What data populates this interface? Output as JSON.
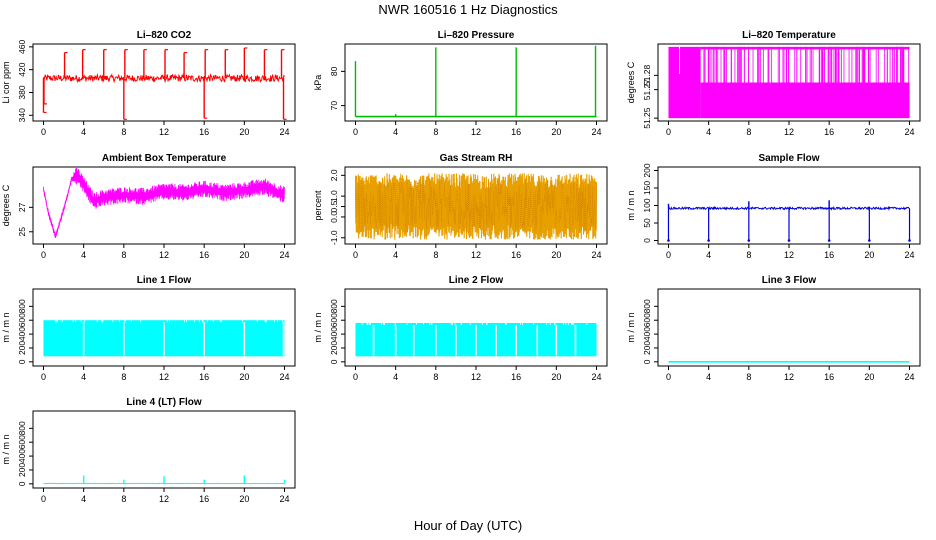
{
  "figure": {
    "title": "NWR  160516  1 Hz Diagnostics",
    "xlabel": "Hour of Day (UTC)"
  },
  "chart_data": [
    {
      "id": "co2",
      "type": "line",
      "title": "Li–820 CO2",
      "ylabel": "Li cor ppm",
      "color": "#ff0000",
      "xlim": [
        0,
        24
      ],
      "ylim": [
        330,
        465
      ],
      "xticks": [
        0,
        4,
        8,
        12,
        16,
        20,
        24
      ],
      "yticks": [
        340,
        380,
        420,
        460
      ],
      "ytick_labels": [
        "340",
        "380",
        "420",
        "460"
      ],
      "baseline": 405,
      "noise": 6,
      "spikes": [
        {
          "x": 0.0,
          "y": 345
        },
        {
          "x": 0.05,
          "y": 360
        },
        {
          "x": 2.1,
          "y": 450
        },
        {
          "x": 3.9,
          "y": 455
        },
        {
          "x": 6.0,
          "y": 455
        },
        {
          "x": 8.0,
          "y": 333
        },
        {
          "x": 8.1,
          "y": 455
        },
        {
          "x": 10.0,
          "y": 455
        },
        {
          "x": 12.1,
          "y": 455
        },
        {
          "x": 14.0,
          "y": 450
        },
        {
          "x": 16.0,
          "y": 335
        },
        {
          "x": 16.1,
          "y": 455
        },
        {
          "x": 18.1,
          "y": 455
        },
        {
          "x": 20.0,
          "y": 458
        },
        {
          "x": 22.0,
          "y": 455
        },
        {
          "x": 23.7,
          "y": 455
        },
        {
          "x": 23.9,
          "y": 333
        }
      ]
    },
    {
      "id": "pressure",
      "type": "line",
      "title": "Li–820 Pressure",
      "ylabel": "kPa",
      "color": "#00bb00",
      "xlim": [
        0,
        24
      ],
      "ylim": [
        65.5,
        88
      ],
      "xticks": [
        0,
        4,
        8,
        12,
        16,
        20,
        24
      ],
      "yticks": [
        70,
        80
      ],
      "ytick_labels": [
        "70",
        "80"
      ],
      "baseline": 66.8,
      "spikes": [
        {
          "x": 0.0,
          "y": 83
        },
        {
          "x": 4.0,
          "y": 67.5
        },
        {
          "x": 8.0,
          "y": 87
        },
        {
          "x": 16.0,
          "y": 87
        },
        {
          "x": 23.9,
          "y": 87.5
        }
      ]
    },
    {
      "id": "li_temp",
      "type": "band",
      "title": "Li–820 Temperature",
      "ylabel": "degrees C",
      "color": "#ff00ff",
      "xlim": [
        0,
        24
      ],
      "ylim": [
        51.248,
        51.302
      ],
      "xticks": [
        0,
        4,
        8,
        12,
        16,
        20,
        24
      ],
      "yticks": [
        51.25,
        51.27,
        51.28
      ],
      "ytick_labels": [
        "51.25",
        "51.27",
        "51.28"
      ],
      "upper": 51.3,
      "lower": 51.25,
      "mid": 51.275,
      "gap_start": 3.2
    },
    {
      "id": "box_temp",
      "type": "line",
      "title": "Ambient Box Temperature",
      "ylabel": "degrees C",
      "color": "#ff00ff",
      "xlim": [
        0,
        24
      ],
      "ylim": [
        24.0,
        30.3
      ],
      "xticks": [
        0,
        4,
        8,
        12,
        16,
        20,
        24
      ],
      "yticks": [
        25,
        27
      ],
      "ytick_labels": [
        "25",
        "27"
      ],
      "trend": [
        {
          "x": 0.0,
          "y": 28.5
        },
        {
          "x": 0.5,
          "y": 26.5
        },
        {
          "x": 1.2,
          "y": 24.6
        },
        {
          "x": 2.0,
          "y": 26.8
        },
        {
          "x": 2.8,
          "y": 29.3
        },
        {
          "x": 3.4,
          "y": 29.6
        },
        {
          "x": 4.2,
          "y": 28.6
        },
        {
          "x": 5.0,
          "y": 27.5
        },
        {
          "x": 6.0,
          "y": 27.8
        },
        {
          "x": 8.0,
          "y": 28.0
        },
        {
          "x": 10.0,
          "y": 27.9
        },
        {
          "x": 12.0,
          "y": 28.3
        },
        {
          "x": 14.0,
          "y": 28.2
        },
        {
          "x": 16.0,
          "y": 28.5
        },
        {
          "x": 18.0,
          "y": 28.2
        },
        {
          "x": 20.0,
          "y": 28.4
        },
        {
          "x": 22.0,
          "y": 28.7
        },
        {
          "x": 24.0,
          "y": 28.0
        }
      ],
      "noise": 0.7
    },
    {
      "id": "rh",
      "type": "noise",
      "title": "Gas Stream RH",
      "ylabel": "percent",
      "color": "#e8a000",
      "color2": "#d08000",
      "xlim": [
        0,
        24
      ],
      "ylim": [
        -1.3,
        2.4
      ],
      "xticks": [
        0,
        4,
        8,
        12,
        16,
        20,
        24
      ],
      "yticks": [
        -1.0,
        0.0,
        0.5,
        1.0,
        2.0
      ],
      "ytick_labels": [
        "-1.0",
        "0.0",
        "0.5",
        "1.0",
        "2.0"
      ],
      "center": 0.5,
      "amp": 1.6
    },
    {
      "id": "sample_flow",
      "type": "line",
      "title": "Sample Flow",
      "ylabel": "m / m n",
      "color": "#0000dd",
      "xlim": [
        0,
        24
      ],
      "ylim": [
        -10,
        210
      ],
      "xticks": [
        0,
        4,
        8,
        12,
        16,
        20,
        24
      ],
      "yticks": [
        0,
        50,
        100,
        150,
        200
      ],
      "ytick_labels": [
        "0",
        "50",
        "100",
        "150",
        "200"
      ],
      "baseline": 92,
      "noise": 3,
      "dips": [
        0.0,
        4.0,
        8.0,
        12.0,
        16.0,
        20.0,
        24.0
      ],
      "spikes": [
        {
          "x": 0.0,
          "y": 105
        },
        {
          "x": 8.0,
          "y": 112
        },
        {
          "x": 16.0,
          "y": 115
        }
      ]
    },
    {
      "id": "line1",
      "type": "block",
      "title": "Line 1 Flow",
      "ylabel": "m / m n",
      "color": "#00ffff",
      "xlim": [
        0,
        24
      ],
      "ylim": [
        -60,
        1050
      ],
      "xticks": [
        0,
        4,
        8,
        12,
        16,
        20,
        24
      ],
      "yticks": [
        0,
        200,
        400,
        600,
        800
      ],
      "ytick_labels": [
        "0",
        "200",
        "400",
        "600",
        "800"
      ],
      "top": 600,
      "bottom": 80,
      "gaps": [
        4.0,
        8.0,
        12.0,
        16.0,
        20.0,
        23.9
      ]
    },
    {
      "id": "line2",
      "type": "block",
      "title": "Line 2 Flow",
      "ylabel": "m / m n",
      "color": "#00ffff",
      "xlim": [
        0,
        24
      ],
      "ylim": [
        -60,
        1050
      ],
      "xticks": [
        0,
        4,
        8,
        12,
        16,
        20,
        24
      ],
      "yticks": [
        0,
        200,
        400,
        600,
        800
      ],
      "ytick_labels": [
        "0",
        "200",
        "400",
        "600",
        "800"
      ],
      "top": 560,
      "bottom": 80,
      "gaps": [
        1.8,
        4.0,
        5.8,
        8.0,
        10.0,
        12.0,
        14.0,
        16.0,
        18.1,
        20.0,
        21.9
      ]
    },
    {
      "id": "line3",
      "type": "line",
      "title": "Line 3 Flow",
      "ylabel": "m / m n",
      "color": "#00ffff",
      "xlim": [
        0,
        24
      ],
      "ylim": [
        -60,
        1050
      ],
      "xticks": [
        0,
        4,
        8,
        12,
        16,
        20,
        24
      ],
      "yticks": [
        0,
        200,
        400,
        600,
        800
      ],
      "ytick_labels": [
        "0",
        "200",
        "400",
        "600",
        "800"
      ],
      "baseline": 0,
      "noise": 0,
      "spikes": []
    },
    {
      "id": "line4",
      "type": "line",
      "title": "Line 4 (LT) Flow",
      "ylabel": "m / m n",
      "color": "#00ffff",
      "xlim": [
        0,
        24
      ],
      "ylim": [
        -60,
        1050
      ],
      "xticks": [
        0,
        4,
        8,
        12,
        16,
        20,
        24
      ],
      "yticks": [
        0,
        200,
        400,
        600,
        800
      ],
      "ytick_labels": [
        "0",
        "200",
        "400",
        "600",
        "800"
      ],
      "baseline": 5,
      "noise": 2,
      "spikes": [
        {
          "x": 4.0,
          "y": 120
        },
        {
          "x": 8.0,
          "y": 60
        },
        {
          "x": 12.0,
          "y": 110
        },
        {
          "x": 16.0,
          "y": 60
        },
        {
          "x": 20.0,
          "y": 120
        },
        {
          "x": 24.0,
          "y": 60
        }
      ]
    }
  ]
}
